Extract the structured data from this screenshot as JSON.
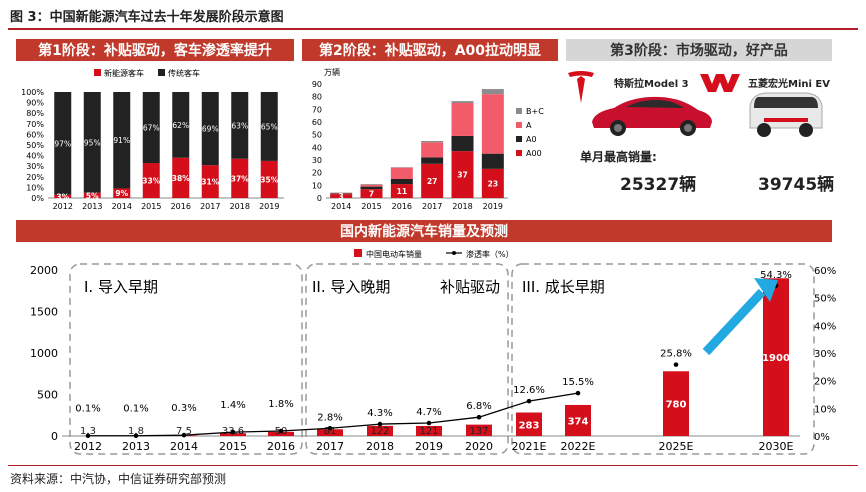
{
  "figure_title": "图 3：中国新能源汽车过去十年发展阶段示意图",
  "stage1": {
    "title": "第1阶段：补贴驱动，客车渗透率提升"
  },
  "stage2": {
    "title": "第2阶段：补贴驱动，A00拉动明显"
  },
  "stage3": {
    "title": "第3阶段：市场驱动，好产品",
    "car1_name": "特斯拉Model 3",
    "car2_name": "五菱宏光Mini EV",
    "monthly_label": "单月最高销量:",
    "car1_sales": "25327辆",
    "car2_sales": "39745辆"
  },
  "bottom_band": "国内新能源汽车销量及预测",
  "phases": {
    "p1": "I. 导入早期",
    "p2": "II. 导入晚期",
    "p2_tag": "补贴驱动",
    "p3": "III. 成长早期"
  },
  "source": "资料来源：中汽协，中信证券研究部预测",
  "colors": {
    "red": "#d40f1b",
    "black": "#222222",
    "pink": "#f25c6a",
    "gray": "#8c8c8c",
    "band": "#c0392b"
  },
  "chart_data": [
    {
      "type": "bar",
      "stacked": true,
      "legend": [
        "新能源客车",
        "传统客车"
      ],
      "categories": [
        "2012",
        "2013",
        "2014",
        "2015",
        "2016",
        "2017",
        "2018",
        "2019"
      ],
      "series": [
        {
          "name": "新能源客车",
          "values": [
            3,
            5,
            9,
            33,
            38,
            31,
            37,
            35
          ],
          "labels": [
            "3%",
            "5%",
            "9%",
            "33%",
            "38%",
            "31%",
            "37%",
            "35%"
          ]
        },
        {
          "name": "传统客车",
          "values": [
            97,
            95,
            91,
            67,
            62,
            69,
            63,
            65
          ],
          "labels": [
            "97%",
            "95%",
            "91%",
            "67%",
            "62%",
            "69%",
            "63%",
            "65%"
          ]
        }
      ],
      "yticks": [
        "0%",
        "10%",
        "20%",
        "30%",
        "40%",
        "50%",
        "60%",
        "70%",
        "80%",
        "90%",
        "100%"
      ],
      "ylim": [
        0,
        100
      ]
    },
    {
      "type": "bar",
      "stacked": true,
      "ylabel": "万辆",
      "categories": [
        "2014",
        "2015",
        "2016",
        "2017",
        "2018",
        "2019"
      ],
      "legend": [
        "B+C",
        "A",
        "A0",
        "A00"
      ],
      "series": [
        {
          "name": "A00",
          "values": [
            3,
            7,
            11,
            27,
            37,
            23
          ]
        },
        {
          "name": "A0",
          "values": [
            0.5,
            2,
            4,
            5,
            12,
            12
          ]
        },
        {
          "name": "A",
          "values": [
            0.5,
            1.5,
            9,
            12,
            26,
            47
          ]
        },
        {
          "name": "B+C",
          "values": [
            0.3,
            0.5,
            0.3,
            1,
            1.5,
            4
          ]
        }
      ],
      "a00_labels": [
        "3",
        "7",
        "11",
        "27",
        "37",
        "23"
      ],
      "yticks": [
        "0",
        "10",
        "20",
        "30",
        "40",
        "50",
        "60",
        "70",
        "80",
        "90"
      ],
      "ylim": [
        0,
        90
      ]
    },
    {
      "type": "bar",
      "legend": [
        "中国电动车销量",
        "渗透率（%）"
      ],
      "categories": [
        "2012",
        "2013",
        "2014",
        "2015",
        "2016",
        "2017",
        "2018",
        "2019",
        "2020",
        "2021E",
        "2022E",
        "2025E",
        "2030E"
      ],
      "values": [
        1.3,
        1.8,
        7.5,
        33.6,
        50,
        81,
        122,
        121,
        137,
        283,
        374,
        780,
        1900
      ],
      "value_labels": [
        "1.3",
        "1.8",
        "7.5",
        "33.6",
        "50",
        "81",
        "122",
        "121",
        "137",
        "283",
        "374",
        "780",
        "1900"
      ],
      "penetration": [
        0.1,
        0.1,
        0.3,
        1.4,
        1.8,
        2.8,
        4.3,
        4.7,
        6.8,
        12.6,
        15.5,
        25.8,
        54.3
      ],
      "penetration_labels": [
        "0.1%",
        "0.1%",
        "0.3%",
        "1.4%",
        "1.8%",
        "2.8%",
        "4.3%",
        "4.7%",
        "6.8%",
        "12.6%",
        "15.5%",
        "25.8%",
        "54.3%"
      ],
      "yticks_left": [
        "0",
        "500",
        "1000",
        "1500",
        "2000"
      ],
      "yticks_right": [
        "0%",
        "10%",
        "20%",
        "30%",
        "40%",
        "50%",
        "60%"
      ],
      "ylim": [
        0,
        2000
      ],
      "y2lim": [
        0,
        60
      ]
    }
  ]
}
